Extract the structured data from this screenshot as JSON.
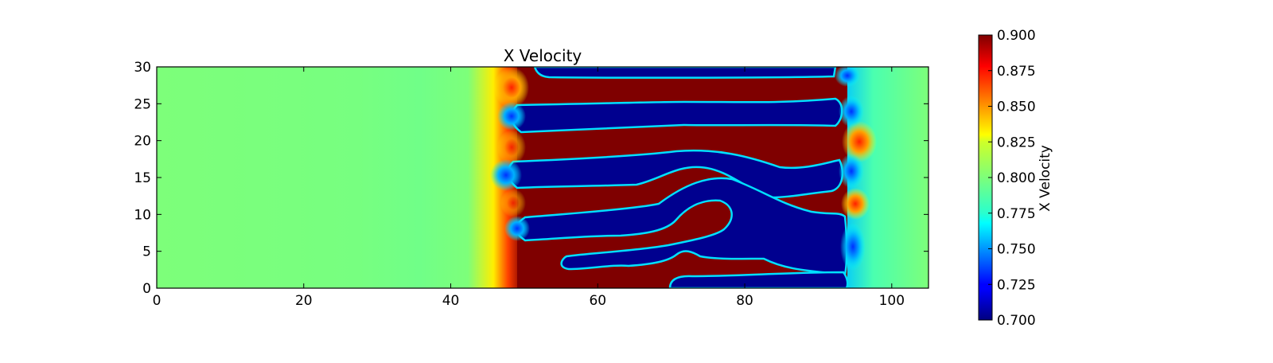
{
  "chart_data": {
    "type": "heatmap",
    "title": "X Velocity",
    "xlabel": "",
    "ylabel": "",
    "xlim": [
      0,
      105
    ],
    "ylim": [
      0,
      30
    ],
    "x_ticks": [
      "0",
      "20",
      "40",
      "60",
      "80",
      "100"
    ],
    "y_ticks": [
      "0",
      "5",
      "10",
      "15",
      "20",
      "25",
      "30"
    ],
    "colorbar": {
      "label": "X Velocity",
      "range": [
        0.7,
        0.9
      ],
      "ticks": [
        "0.700",
        "0.725",
        "0.750",
        "0.775",
        "0.800",
        "0.825",
        "0.850",
        "0.875",
        "0.900"
      ],
      "colormap": "jet"
    },
    "field": {
      "background_value": 0.8,
      "upstream_ramp": [
        [
          0,
          0.8
        ],
        [
          30,
          0.795
        ],
        [
          38,
          0.79
        ],
        [
          44,
          0.8
        ],
        [
          48,
          0.84
        ],
        [
          50,
          0.9
        ]
      ],
      "band_region_x": [
        49,
        94
      ],
      "bands": [
        {
          "value": 0.7,
          "y_range": [
            0,
            2
          ]
        },
        {
          "value": 0.9,
          "y_range": [
            2,
            4
          ]
        },
        {
          "value": 0.7,
          "y_range": [
            4,
            6
          ]
        },
        {
          "value": 0.9,
          "y_range": [
            6,
            9
          ]
        },
        {
          "value": 0.7,
          "y_range": [
            9,
            11
          ]
        },
        {
          "value": 0.9,
          "y_range": [
            11,
            14
          ]
        },
        {
          "value": 0.7,
          "y_range": [
            14,
            17
          ]
        },
        {
          "value": 0.9,
          "y_range": [
            17,
            22
          ]
        },
        {
          "value": 0.7,
          "y_range": [
            22,
            25
          ]
        },
        {
          "value": 0.9,
          "y_range": [
            25,
            28
          ]
        },
        {
          "value": 0.7,
          "y_range": [
            28,
            30
          ]
        }
      ]
    }
  }
}
